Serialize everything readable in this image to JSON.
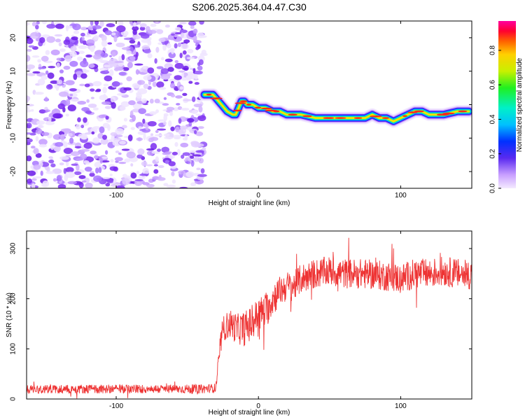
{
  "chart_data": [
    {
      "type": "heatmap",
      "title": "S206.2025.364.04.47.C30",
      "xlabel": "Height of straight line (km)",
      "ylabel": "Frequency (Hz)",
      "xlim": [
        -163,
        150
      ],
      "ylim": [
        -25,
        25
      ],
      "x_ticks": [
        -100,
        0,
        100
      ],
      "x_tick_labels": [
        "-100",
        "0",
        "100"
      ],
      "y_ticks": [
        -20,
        -10,
        0,
        10,
        20
      ],
      "y_tick_labels": [
        "-20",
        "-10",
        "0",
        "10",
        "20"
      ],
      "noise_region_x": [
        -163,
        -38
      ],
      "ridge": {
        "x": [
          -38,
          -35,
          -32,
          -30,
          -26,
          -22,
          -18,
          -16,
          -14,
          -12,
          -10,
          -8,
          -6,
          -4,
          0,
          5,
          10,
          15,
          20,
          30,
          40,
          50,
          60,
          70,
          75,
          80,
          85,
          90,
          95,
          100,
          105,
          110,
          115,
          120,
          125,
          130,
          140,
          148
        ],
        "y": [
          3,
          3,
          3,
          2,
          0,
          -2,
          -3,
          -3,
          -1,
          1,
          1,
          0,
          0,
          0,
          -1,
          -1,
          -2,
          -2,
          -3,
          -3,
          -4,
          -4,
          -4,
          -4,
          -4,
          -3,
          -4,
          -4,
          -5,
          -4,
          -3,
          -2,
          -2,
          -3,
          -3,
          -3,
          -2,
          -2
        ]
      },
      "colorbar": {
        "label": "Normalized spectral amplitude",
        "ticks": [
          0.0,
          0.2,
          0.4,
          0.6,
          0.8
        ],
        "tick_labels": [
          "0.0",
          "0.2",
          "0.4",
          "0.6",
          "0.8"
        ],
        "range": [
          0,
          0.97
        ]
      }
    },
    {
      "type": "line",
      "xlabel": "Height of straight line (km)",
      "ylabel": "SNR (10 * v/v)",
      "xlim": [
        -163,
        150
      ],
      "ylim": [
        0,
        335
      ],
      "x_ticks": [
        -100,
        0,
        100
      ],
      "x_tick_labels": [
        "-100",
        "0",
        "100"
      ],
      "y_ticks": [
        0,
        100,
        200,
        300
      ],
      "y_tick_labels": [
        "0",
        "100",
        "200",
        "300"
      ],
      "line_color": "#ee3333",
      "series": [
        {
          "name": "SNR",
          "x": [
            -163,
            -140,
            -120,
            -100,
            -80,
            -60,
            -40,
            -30,
            -27,
            -25,
            -20,
            -15,
            -10,
            -5,
            0,
            5,
            10,
            15,
            20,
            25,
            30,
            40,
            50,
            60,
            70,
            80,
            90,
            100,
            110,
            120,
            130,
            140,
            150
          ],
          "values": [
            20,
            20,
            20,
            20,
            20,
            20,
            20,
            22,
            100,
            140,
            150,
            140,
            140,
            150,
            170,
            175,
            200,
            215,
            225,
            225,
            240,
            250,
            255,
            250,
            250,
            248,
            245,
            240,
            250,
            250,
            255,
            250,
            248
          ],
          "noise_amplitude": [
            9,
            9,
            9,
            9,
            9,
            9,
            9,
            9,
            25,
            25,
            30,
            30,
            35,
            35,
            35,
            35,
            35,
            30,
            30,
            30,
            30,
            30,
            30,
            30,
            30,
            30,
            30,
            30,
            30,
            30,
            30,
            30,
            30
          ]
        }
      ]
    }
  ]
}
